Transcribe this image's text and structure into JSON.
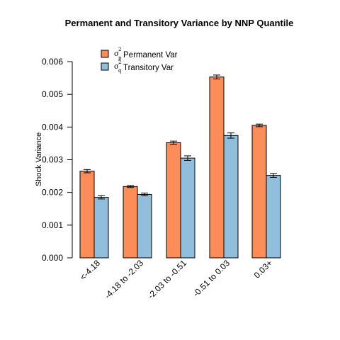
{
  "chart_data": {
    "type": "bar",
    "title": "Permanent and Transitory Variance by  NNP Quantile",
    "ylabel": "Shock Variance",
    "xlabel": "",
    "ylim": [
      0,
      0.006
    ],
    "yticks": [
      "0.000",
      "0.001",
      "0.002",
      "0.003",
      "0.004",
      "0.005",
      "0.006"
    ],
    "categories": [
      "<-4.18",
      "-4.18 to -2.03",
      "-2.03 to -0.51",
      "-0.51 to 0.03",
      "0.03+"
    ],
    "series": [
      {
        "name": "Permanent Var",
        "symbol": "σ",
        "subscript": "p",
        "superscript": "2",
        "color": "#fc8d59",
        "values": [
          0.00265,
          0.00218,
          0.00352,
          0.00553,
          0.00405
        ],
        "err": [
          5e-05,
          3e-05,
          5e-05,
          6e-05,
          4e-05
        ]
      },
      {
        "name": "Transitory Var",
        "symbol": "σ",
        "subscript": "q",
        "superscript": "2",
        "color": "#91bfdb",
        "values": [
          0.00185,
          0.00194,
          0.00305,
          0.00374,
          0.00252
        ],
        "err": [
          5e-05,
          4e-05,
          7e-05,
          8e-05,
          6e-05
        ]
      }
    ],
    "legend_position": "top-left",
    "grid": false
  }
}
